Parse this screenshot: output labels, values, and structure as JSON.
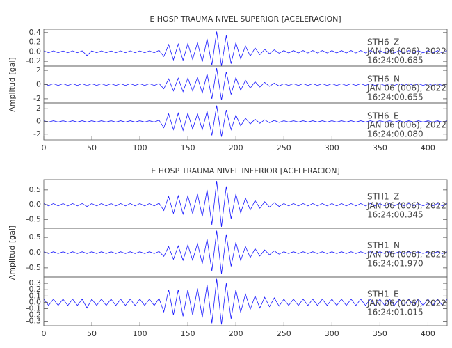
{
  "chart_data": [
    {
      "type": "line",
      "title": "E HOSP TRAUMA NIVEL SUPERIOR [ACELERACION]",
      "y_label": "Amplitud [gal]",
      "xlim": [
        0,
        420
      ],
      "xticks": [
        0,
        50,
        100,
        150,
        200,
        250,
        300,
        350,
        400
      ],
      "x": [
        0,
        5,
        10,
        15,
        20,
        25,
        30,
        35,
        40,
        45,
        50,
        55,
        60,
        65,
        70,
        75,
        80,
        85,
        90,
        95,
        100,
        105,
        110,
        115,
        120,
        125,
        130,
        135,
        140,
        145,
        150,
        155,
        160,
        165,
        170,
        175,
        180,
        185,
        190,
        195,
        200,
        205,
        210,
        215,
        220,
        225,
        230,
        235,
        240,
        245,
        250,
        255,
        260,
        265,
        270,
        275,
        280,
        285,
        290,
        295,
        300,
        305,
        310,
        315,
        320,
        325,
        330,
        335,
        340,
        345,
        350,
        355,
        360,
        365,
        370,
        375,
        380,
        385,
        390,
        395,
        400,
        405,
        410,
        415,
        420
      ],
      "panels": [
        {
          "station": "STH6",
          "component": "Z",
          "date": "JAN 06 (006), 2022",
          "time": "16:24:00.685",
          "color": "#1a1aff",
          "ylim": [
            -0.3,
            0.47
          ],
          "yticks": [
            0.4,
            0.2,
            {
              "value": 0,
              "label": "0.0"
            },
            -0.2
          ],
          "values": [
            0.02,
            -0.02,
            0.02,
            -0.02,
            0.02,
            -0.02,
            0.02,
            -0.02,
            0.02,
            -0.08,
            0.02,
            -0.02,
            0.02,
            -0.02,
            0.02,
            -0.02,
            0.02,
            -0.02,
            0.02,
            -0.02,
            0.02,
            -0.02,
            0.02,
            -0.02,
            0.03,
            -0.1,
            0.15,
            -0.17,
            0.16,
            -0.18,
            0.17,
            -0.16,
            0.19,
            -0.21,
            0.27,
            -0.28,
            0.42,
            -0.3,
            0.34,
            -0.25,
            0.19,
            -0.15,
            0.12,
            -0.09,
            0.08,
            -0.06,
            0.05,
            -0.04,
            0.04,
            -0.03,
            0.025,
            -0.025,
            0.025,
            -0.025,
            0.025,
            -0.025,
            0.025,
            -0.025,
            0.025,
            -0.025,
            0.025,
            -0.025,
            0.025,
            -0.025,
            0.025,
            -0.025,
            0.025,
            -0.025,
            0.025,
            -0.025,
            0.025,
            -0.025,
            0.025,
            -0.025,
            0.025,
            -0.025,
            0.025,
            -0.025,
            0.025,
            -0.025,
            0.025,
            -0.025,
            0.025,
            -0.025,
            0.025
          ]
        },
        {
          "station": "STH6",
          "component": "N",
          "date": "JAN 06 (006), 2022",
          "time": "16:24:00.655",
          "color": "#1a1aff",
          "ylim": [
            -2.6,
            2.6
          ],
          "yticks": [
            2,
            0,
            -2
          ],
          "values": [
            0.12,
            -0.12,
            0.12,
            -0.12,
            0.12,
            -0.12,
            0.12,
            -0.12,
            0.12,
            -0.15,
            0.12,
            -0.12,
            0.12,
            -0.12,
            0.12,
            -0.12,
            0.12,
            -0.12,
            0.12,
            -0.12,
            0.12,
            -0.12,
            0.12,
            -0.12,
            0.15,
            -0.6,
            0.8,
            -0.9,
            0.9,
            -1,
            0.9,
            -0.9,
            1,
            -1.2,
            1.5,
            -2,
            2.3,
            -2.2,
            1.8,
            -1.4,
            1,
            -0.8,
            0.6,
            -0.5,
            0.4,
            -0.35,
            0.3,
            -0.25,
            0.2,
            -0.2,
            0.12,
            -0.12,
            0.12,
            -0.12,
            0.12,
            -0.12,
            0.12,
            -0.12,
            0.12,
            -0.12,
            0.12,
            -0.12,
            0.12,
            -0.12,
            0.12,
            -0.12,
            0.12,
            -0.12,
            0.12,
            -0.12,
            0.12,
            -0.12,
            0.12,
            -0.12,
            0.12,
            -0.12,
            0.12,
            -0.12,
            0.12,
            -0.12,
            0.12,
            -0.12,
            0.12,
            -0.12,
            0.12
          ]
        },
        {
          "station": "STH6",
          "component": "E",
          "date": "JAN 06 (006), 2022",
          "time": "16:24:00.080",
          "color": "#1a1aff",
          "ylim": [
            -2.9,
            2.9
          ],
          "yticks": [
            2,
            0,
            -2
          ],
          "values": [
            0.1,
            -0.1,
            0.1,
            -0.1,
            0.1,
            -0.1,
            0.1,
            -0.1,
            0.1,
            -0.1,
            0.1,
            -0.1,
            0.1,
            -0.1,
            0.1,
            -0.1,
            0.1,
            -0.1,
            0.1,
            -0.1,
            0.1,
            -0.1,
            0.1,
            -0.1,
            0.2,
            -1,
            1.2,
            -1.3,
            1.3,
            -1.4,
            1.3,
            -1.2,
            1.2,
            -1.3,
            1.6,
            -2.2,
            2.5,
            -2.4,
            1.8,
            -1.3,
            1,
            -0.7,
            0.5,
            -0.4,
            0.35,
            -0.3,
            0.25,
            -0.2,
            0.15,
            -0.15,
            0.1,
            -0.1,
            0.1,
            -0.1,
            0.1,
            -0.1,
            0.1,
            -0.1,
            0.1,
            -0.1,
            0.1,
            -0.1,
            0.1,
            -0.1,
            0.1,
            -0.1,
            0.1,
            -0.1,
            0.1,
            -0.1,
            0.1,
            -0.1,
            0.1,
            -0.1,
            0.1,
            -0.1,
            0.1,
            -0.1,
            0.1,
            -0.1,
            0.1,
            -0.1,
            0.1,
            -0.1,
            0.1
          ]
        }
      ]
    },
    {
      "type": "line",
      "title": "E HOSP TRAUMA NIVEL INFERIOR [ACELERACION]",
      "y_label": "Amplitud [gal]",
      "xlim": [
        0,
        420
      ],
      "xticks": [
        0,
        50,
        100,
        150,
        200,
        250,
        300,
        350,
        400
      ],
      "x": [
        0,
        5,
        10,
        15,
        20,
        25,
        30,
        35,
        40,
        45,
        50,
        55,
        60,
        65,
        70,
        75,
        80,
        85,
        90,
        95,
        100,
        105,
        110,
        115,
        120,
        125,
        130,
        135,
        140,
        145,
        150,
        155,
        160,
        165,
        170,
        175,
        180,
        185,
        190,
        195,
        200,
        205,
        210,
        215,
        220,
        225,
        230,
        235,
        240,
        245,
        250,
        255,
        260,
        265,
        270,
        275,
        280,
        285,
        290,
        295,
        300,
        305,
        310,
        315,
        320,
        325,
        330,
        335,
        340,
        345,
        350,
        355,
        360,
        365,
        370,
        375,
        380,
        385,
        390,
        395,
        400,
        405,
        410,
        415,
        420
      ],
      "panels": [
        {
          "station": "STH1",
          "component": "Z",
          "date": "JAN 06 (006), 2022",
          "time": "16:24:00.345",
          "color": "#1a1aff",
          "ylim": [
            -0.8,
            0.85
          ],
          "yticks": [
            0.5,
            {
              "value": 0,
              "label": "0.0"
            },
            -0.5
          ],
          "values": [
            0.04,
            -0.04,
            0.04,
            -0.04,
            0.04,
            -0.04,
            0.04,
            -0.04,
            0.04,
            -0.06,
            0.04,
            -0.04,
            0.04,
            -0.04,
            0.04,
            -0.04,
            0.04,
            -0.04,
            0.04,
            -0.04,
            0.04,
            -0.04,
            0.04,
            -0.04,
            0.05,
            -0.2,
            0.28,
            -0.3,
            0.3,
            -0.32,
            0.3,
            -0.3,
            0.36,
            -0.4,
            0.5,
            -0.68,
            0.8,
            -0.75,
            0.62,
            -0.48,
            0.36,
            -0.28,
            0.22,
            -0.18,
            0.14,
            -0.12,
            0.1,
            -0.08,
            0.07,
            -0.06,
            0.04,
            -0.04,
            0.04,
            -0.04,
            0.04,
            -0.04,
            0.04,
            -0.04,
            0.04,
            -0.04,
            0.04,
            -0.04,
            0.04,
            -0.04,
            0.04,
            -0.04,
            0.04,
            -0.04,
            0.04,
            -0.04,
            0.04,
            -0.04,
            0.04,
            -0.04,
            0.04,
            -0.04,
            0.04,
            -0.04,
            0.04,
            -0.04,
            0.04,
            -0.04,
            0.04,
            -0.04,
            0.04
          ]
        },
        {
          "station": "STH1",
          "component": "N",
          "date": "JAN 06 (006), 2022",
          "time": "16:24:01.970",
          "color": "#1a1aff",
          "ylim": [
            -0.8,
            0.8
          ],
          "yticks": [
            0.5,
            {
              "value": 0,
              "label": "0.0"
            },
            -0.5
          ],
          "values": [
            0.03,
            -0.03,
            0.03,
            -0.03,
            0.03,
            -0.03,
            0.03,
            -0.03,
            0.03,
            -0.03,
            0.03,
            -0.03,
            0.03,
            -0.03,
            0.03,
            -0.03,
            0.03,
            -0.03,
            0.03,
            -0.03,
            0.03,
            -0.03,
            0.03,
            -0.03,
            0.04,
            -0.12,
            0.2,
            -0.22,
            0.22,
            -0.25,
            0.25,
            -0.25,
            0.3,
            -0.36,
            0.45,
            -0.6,
            0.72,
            -0.7,
            0.6,
            -0.45,
            0.34,
            -0.26,
            0.2,
            -0.16,
            0.13,
            -0.11,
            0.09,
            -0.07,
            0.06,
            -0.05,
            0.03,
            -0.03,
            0.03,
            -0.03,
            0.03,
            -0.03,
            0.03,
            -0.03,
            0.03,
            -0.03,
            0.03,
            -0.03,
            0.03,
            -0.03,
            0.03,
            -0.03,
            0.03,
            -0.03,
            0.03,
            -0.03,
            0.03,
            -0.03,
            0.03,
            -0.03,
            0.03,
            -0.03,
            0.03,
            -0.03,
            0.03,
            -0.03,
            0.03,
            -0.03,
            0.03,
            -0.03,
            0.03
          ]
        },
        {
          "station": "STH1",
          "component": "E",
          "date": "JAN 06 (006), 2022",
          "time": "16:24:01.015",
          "color": "#1a1aff",
          "ylim": [
            -0.37,
            0.4
          ],
          "yticks": [
            0.3,
            0.2,
            0.1,
            {
              "value": 0,
              "label": "0.0"
            },
            -0.1,
            -0.2,
            -0.3
          ],
          "values": [
            0.05,
            -0.05,
            0.05,
            -0.05,
            0.05,
            -0.05,
            0.05,
            -0.05,
            0.05,
            -0.09,
            0.05,
            -0.05,
            0.05,
            -0.05,
            0.05,
            -0.05,
            0.05,
            -0.05,
            0.05,
            -0.05,
            0.05,
            -0.05,
            0.05,
            -0.05,
            0.06,
            -0.15,
            0.2,
            -0.2,
            0.2,
            -0.22,
            0.2,
            -0.2,
            0.22,
            -0.24,
            0.28,
            -0.33,
            0.37,
            -0.35,
            0.3,
            -0.26,
            0.2,
            -0.16,
            0.13,
            -0.11,
            0.1,
            -0.09,
            0.08,
            -0.07,
            0.07,
            -0.06,
            0.05,
            -0.05,
            0.05,
            -0.05,
            0.05,
            -0.05,
            0.05,
            -0.05,
            0.05,
            -0.05,
            0.05,
            -0.05,
            0.05,
            -0.05,
            0.05,
            -0.05,
            0.05,
            -0.05,
            0.05,
            -0.05,
            0.05,
            -0.05,
            0.05,
            -0.05,
            0.05,
            -0.05,
            0.05,
            -0.05,
            0.05,
            -0.05,
            0.05,
            -0.05,
            0.05,
            -0.05,
            0.05
          ]
        }
      ]
    }
  ]
}
